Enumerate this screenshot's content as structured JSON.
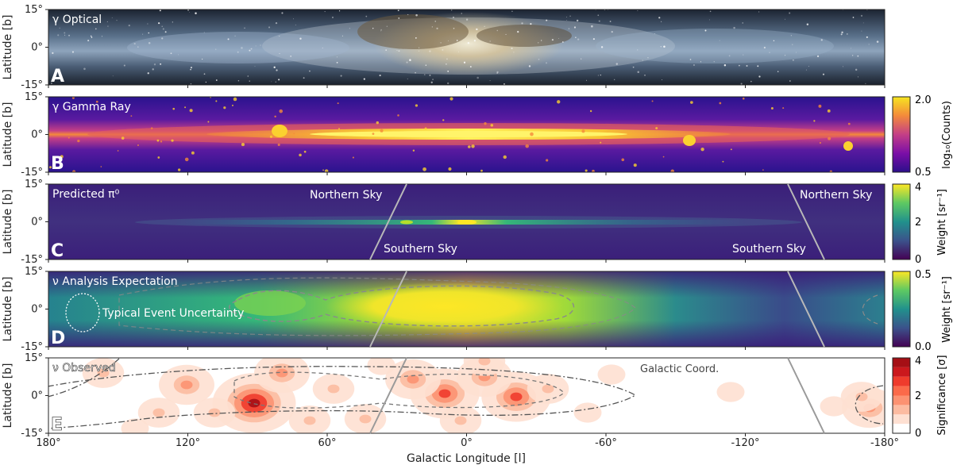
{
  "axes": {
    "ylabel": "Latitude [b]",
    "xlabel": "Galactic Longitude [l]",
    "lat_ticks": [
      "15°",
      "0°",
      "-15°"
    ],
    "lon_ticks": [
      "180°",
      "120°",
      "60°",
      "0°",
      "-60°",
      "-120°",
      "-180°"
    ]
  },
  "panels": [
    {
      "id": "A",
      "letter": "A",
      "title": "γ Optical"
    },
    {
      "id": "B",
      "letter": "B",
      "title": "γ Gamma Ray"
    },
    {
      "id": "C",
      "letter": "C",
      "title": "Predicted π⁰"
    },
    {
      "id": "D",
      "letter": "D",
      "title": "ν Analysis Expectation"
    },
    {
      "id": "E",
      "letter": "E",
      "title": "ν Observed"
    }
  ],
  "annotations": {
    "northern_sky": "Northern Sky",
    "southern_sky": "Southern Sky",
    "event_uncertainty": "Typical Event Uncertainty",
    "galactic_coord": "Galactic Coord."
  },
  "colorbars": {
    "B": {
      "label": "log₁₀(Counts)",
      "ticks": [
        "2.0",
        "0.5"
      ]
    },
    "C": {
      "label": "Weight [sr⁻¹]",
      "ticks": [
        "4",
        "2",
        "0"
      ]
    },
    "D": {
      "label": "Weight [sr⁻¹]",
      "ticks": [
        "0.5",
        "0.0"
      ]
    },
    "E": {
      "label": "Significance [σ]",
      "ticks": [
        "4",
        "2",
        "0"
      ]
    }
  },
  "colors": {
    "plasma_bg": "#2b0f8a",
    "plasma_hot": "#f6e620",
    "viridis_bg": "#3b1a78",
    "viridis_hot": "#fde725",
    "sig_high": "#a50f15",
    "sig_low": "#fee0d2"
  }
}
